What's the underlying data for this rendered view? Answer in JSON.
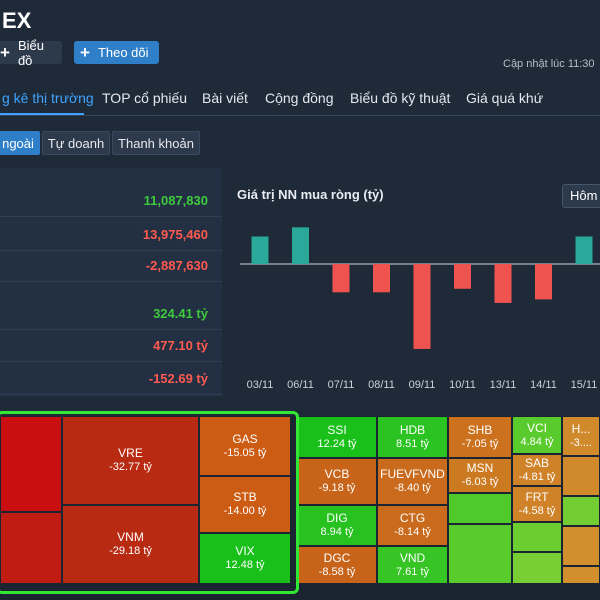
{
  "header": {
    "title": "EX",
    "updated": "Cập nhật lúc  11:30"
  },
  "buttons": {
    "chart": "Biểu đồ",
    "follow": "Theo dõi"
  },
  "tabs": [
    "g kê thị trường",
    "TOP cổ phiếu",
    "Bài viết",
    "Cộng đồng",
    "Biểu đồ kỹ thuật",
    "Giá quá khứ"
  ],
  "subtabs": [
    "ngoài",
    "Tự doanh",
    "Thanh khoản"
  ],
  "stats": [
    "11,087,830",
    "13,975,460",
    "-2,887,630",
    "324.41 tỷ",
    "477.10 tỷ",
    "-152.69 tỷ"
  ],
  "chart_data": {
    "type": "bar",
    "title": "Giá trị NN mua ròng (tỷ)",
    "categories": [
      "03/11",
      "06/11",
      "07/11",
      "08/11",
      "09/11",
      "10/11",
      "13/11",
      "14/11",
      "15/11"
    ],
    "values": [
      75,
      100,
      -80,
      -80,
      -240,
      -70,
      -110,
      -100,
      75
    ],
    "ylim": [
      -260,
      120
    ],
    "colors": {
      "positive": "#2aa89a",
      "negative": "#ef5350"
    },
    "period_label": "Hôm"
  },
  "heatmap": [
    {
      "sym": "",
      "val": "",
      "color": "#c90f0f"
    },
    {
      "sym": "",
      "val": "",
      "color": "#c01c12"
    },
    {
      "sym": "VRE",
      "val": "-32.77 tỷ",
      "color": "#b82a12"
    },
    {
      "sym": "VNM",
      "val": "-29.18 tỷ",
      "color": "#b82a12"
    },
    {
      "sym": "GAS",
      "val": "-15.05 tỷ",
      "color": "#cc5c14"
    },
    {
      "sym": "STB",
      "val": "-14.00 tỷ",
      "color": "#cc5c14"
    },
    {
      "sym": "VIX",
      "val": "12.48 tỷ",
      "color": "#19c01a"
    },
    {
      "sym": "SSI",
      "val": "12.24 tỷ",
      "color": "#19c01a"
    },
    {
      "sym": "VCB",
      "val": "-9.18 tỷ",
      "color": "#c8641a"
    },
    {
      "sym": "DIG",
      "val": "8.94 tỷ",
      "color": "#27c21f"
    },
    {
      "sym": "DGC",
      "val": "-8.58 tỷ",
      "color": "#c8641a"
    },
    {
      "sym": "HDB",
      "val": "8.51 tỷ",
      "color": "#2bc321"
    },
    {
      "sym": "FUEVFVND",
      "val": "-8.40 tỷ",
      "color": "#c96a1c"
    },
    {
      "sym": "CTG",
      "val": "-8.14 tỷ",
      "color": "#c96a1c"
    },
    {
      "sym": "VND",
      "val": "7.61 tỷ",
      "color": "#36c524"
    },
    {
      "sym": "SHB",
      "val": "-7.05 tỷ",
      "color": "#cc721f"
    },
    {
      "sym": "MSN",
      "val": "-6.03 tỷ",
      "color": "#cc7a22"
    },
    {
      "sym": "",
      "val": "",
      "color": "#4fca2a"
    },
    {
      "sym": "",
      "val": "",
      "color": "#5acb2d"
    },
    {
      "sym": "VCI",
      "val": "4.84 tỷ",
      "color": "#5acb2d"
    },
    {
      "sym": "SAB",
      "val": "-4.81 tỷ",
      "color": "#cf8228"
    },
    {
      "sym": "FRT",
      "val": "-4.58 tỷ",
      "color": "#cf8228"
    },
    {
      "sym": "",
      "val": "",
      "color": "#6ccd31"
    },
    {
      "sym": "H...",
      "val": "-3....",
      "color": "#d08a2c"
    },
    {
      "sym": "",
      "val": "",
      "color": "#d08a2c"
    },
    {
      "sym": "",
      "val": "",
      "color": "#74ce33"
    },
    {
      "sym": "",
      "val": "",
      "color": "#d18f2e"
    },
    {
      "sym": "",
      "val": "",
      "color": "#78cf34"
    },
    {
      "sym": "",
      "val": "",
      "color": "#d18f2e"
    }
  ]
}
